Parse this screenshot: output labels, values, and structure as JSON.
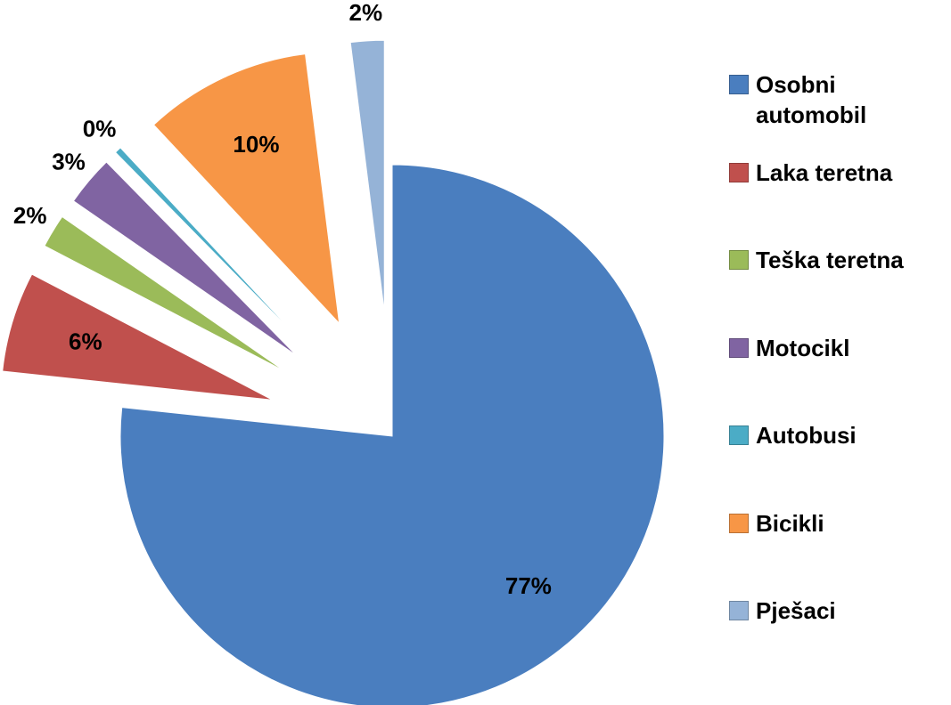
{
  "chart_data": {
    "type": "pie",
    "categories": [
      "Osobni automobil",
      "Laka teretna",
      "Teška teretna",
      "Motocikl",
      "Autobusi",
      "Bicikli",
      "Pješaci"
    ],
    "values": [
      77,
      6,
      2,
      3,
      0.4,
      10,
      2
    ],
    "value_labels": [
      "77%",
      "6%",
      "2%",
      "3%",
      "0%",
      "10%",
      "2%"
    ],
    "colors": [
      "#4a7ebf",
      "#c0504d",
      "#9bbb59",
      "#8064a2",
      "#4bacc6",
      "#f79646",
      "#95b3d7"
    ],
    "legend": "right"
  }
}
